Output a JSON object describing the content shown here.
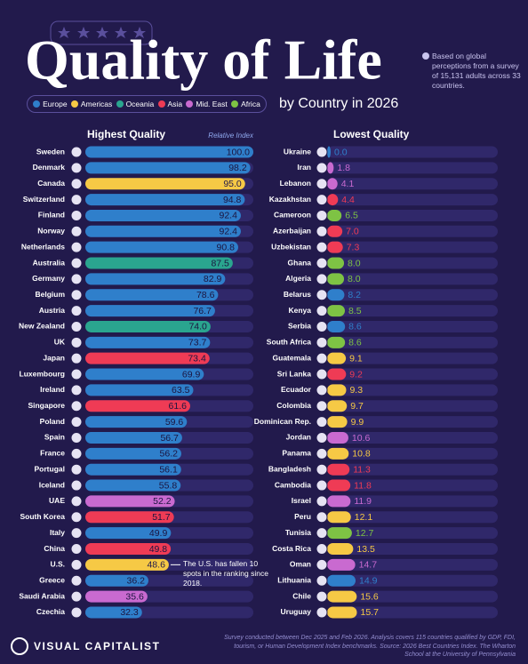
{
  "header": {
    "title": "Quality of Life",
    "subtitle": "by Country in 2026",
    "note": "Based on global perceptions from a survey of 15,131 adults across 33 countries."
  },
  "legend": [
    {
      "name": "Europe",
      "color": "#2f7fcb"
    },
    {
      "name": "Americas",
      "color": "#f6c945"
    },
    {
      "name": "Oceania",
      "color": "#2aa58f"
    },
    {
      "name": "Asia",
      "color": "#ef3b55"
    },
    {
      "name": "Mid. East",
      "color": "#c96ad0"
    },
    {
      "name": "Africa",
      "color": "#7ec344"
    }
  ],
  "chart_data": [
    {
      "type": "bar",
      "orientation": "horizontal",
      "title": "Highest Quality",
      "subtitle": "Relative Index",
      "categories": [
        "Sweden",
        "Denmark",
        "Canada",
        "Switzerland",
        "Finland",
        "Norway",
        "Netherlands",
        "Australia",
        "Germany",
        "Belgium",
        "Austria",
        "New Zealand",
        "UK",
        "Japan",
        "Luxembourg",
        "Ireland",
        "Singapore",
        "Poland",
        "Spain",
        "France",
        "Portugal",
        "Iceland",
        "UAE",
        "South Korea",
        "Italy",
        "China",
        "U.S.",
        "Greece",
        "Saudi Arabia",
        "Czechia"
      ],
      "values": [
        100.0,
        98.2,
        95.0,
        94.8,
        92.4,
        92.4,
        90.8,
        87.5,
        82.9,
        78.6,
        76.7,
        74.0,
        73.7,
        73.4,
        69.9,
        63.5,
        61.6,
        59.6,
        56.7,
        56.2,
        56.1,
        55.8,
        52.2,
        51.7,
        49.9,
        49.8,
        48.6,
        36.2,
        35.6,
        32.3
      ],
      "value_labels": [
        "100.0",
        "98.2",
        "95.0",
        "94.8",
        "92.4",
        "92.4",
        "90.8",
        "87.5",
        "82.9",
        "78.6",
        "76.7",
        "74.0",
        "73.7",
        "73.4",
        "69.9",
        "63.5",
        "61.6",
        "59.6",
        "56.7",
        "56.2",
        "56.1",
        "55.8",
        "52.2",
        "51.7",
        "49.9",
        "49.8",
        "48.6",
        "36.2",
        "35.6",
        "32.3"
      ],
      "colors": [
        "#2f7fcb",
        "#2f7fcb",
        "#f6c945",
        "#2f7fcb",
        "#2f7fcb",
        "#2f7fcb",
        "#2f7fcb",
        "#2aa58f",
        "#2f7fcb",
        "#2f7fcb",
        "#2f7fcb",
        "#2aa58f",
        "#2f7fcb",
        "#ef3b55",
        "#2f7fcb",
        "#2f7fcb",
        "#ef3b55",
        "#2f7fcb",
        "#2f7fcb",
        "#2f7fcb",
        "#2f7fcb",
        "#2f7fcb",
        "#c96ad0",
        "#ef3b55",
        "#2f7fcb",
        "#ef3b55",
        "#f6c945",
        "#2f7fcb",
        "#c96ad0",
        "#2f7fcb"
      ],
      "xlim": [
        0,
        100
      ],
      "annotation": "The U.S. has fallen 10 spots in the ranking since 2018."
    },
    {
      "type": "bar",
      "orientation": "horizontal",
      "title": "Lowest Quality",
      "categories": [
        "Ukraine",
        "Iran",
        "Lebanon",
        "Kazakhstan",
        "Cameroon",
        "Azerbaijan",
        "Uzbekistan",
        "Ghana",
        "Algeria",
        "Belarus",
        "Kenya",
        "Serbia",
        "South Africa",
        "Guatemala",
        "Sri Lanka",
        "Ecuador",
        "Colombia",
        "Dominican Rep.",
        "Jordan",
        "Panama",
        "Bangladesh",
        "Cambodia",
        "Israel",
        "Peru",
        "Tunisia",
        "Costa Rica",
        "Oman",
        "Lithuania",
        "Chile",
        "Uruguay"
      ],
      "values": [
        0.0,
        1.8,
        4.1,
        4.4,
        6.5,
        7.0,
        7.3,
        8.0,
        8.0,
        8.2,
        8.5,
        8.6,
        8.6,
        9.1,
        9.2,
        9.3,
        9.7,
        9.9,
        10.6,
        10.8,
        11.3,
        11.8,
        11.9,
        12.1,
        12.7,
        13.5,
        14.7,
        14.9,
        15.6,
        15.7
      ],
      "value_labels": [
        "0.0",
        "1.8",
        "4.1",
        "4.4",
        "6.5",
        "7.0",
        "7.3",
        "8.0",
        "8.0",
        "8.2",
        "8.5",
        "8.6",
        "8.6",
        "9.1",
        "9.2",
        "9.3",
        "9.7",
        "9.9",
        "10.6",
        "10.8",
        "11.3",
        "11.8",
        "11.9",
        "12.1",
        "12.7",
        "13.5",
        "14.7",
        "14.9",
        "15.6",
        "15.7"
      ],
      "colors": [
        "#2f7fcb",
        "#c96ad0",
        "#c96ad0",
        "#ef3b55",
        "#7ec344",
        "#ef3b55",
        "#ef3b55",
        "#7ec344",
        "#7ec344",
        "#2f7fcb",
        "#7ec344",
        "#2f7fcb",
        "#7ec344",
        "#f6c945",
        "#ef3b55",
        "#f6c945",
        "#f6c945",
        "#f6c945",
        "#c96ad0",
        "#f6c945",
        "#ef3b55",
        "#ef3b55",
        "#c96ad0",
        "#f6c945",
        "#7ec344",
        "#f6c945",
        "#c96ad0",
        "#2f7fcb",
        "#f6c945",
        "#f6c945"
      ],
      "xlim": [
        0,
        100
      ]
    }
  ],
  "brand": "VISUAL CAPITALIST",
  "footer": "Survey conducted between Dec 2025 and Feb 2026. Analysis covers 115 countries qualified by GDP, FDI, tourism, or Human Development Index benchmarks. Source: 2026 Best Countries Index. The Wharton School at the University of Pennsylvania"
}
